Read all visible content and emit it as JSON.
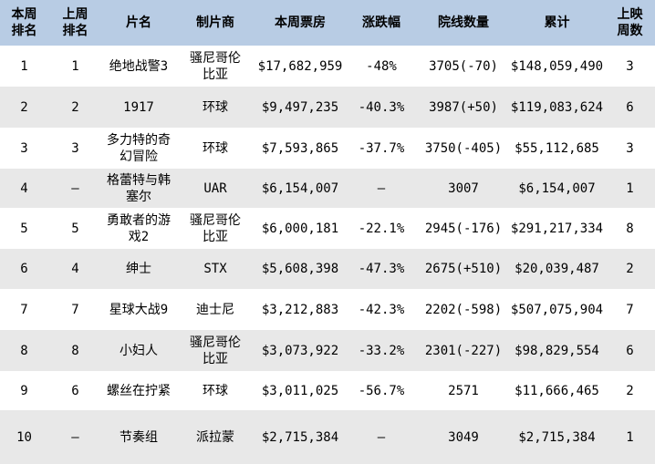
{
  "colors": {
    "header_bg": "#b8cce4",
    "row_bg": "#ffffff",
    "row_alt_bg": "#e8e8e8",
    "text": "#000000"
  },
  "chart_data": {
    "type": "table",
    "title": "",
    "columns": [
      {
        "key": "rank_this_week",
        "label": "本周\n排名"
      },
      {
        "key": "rank_last_week",
        "label": "上周\n排名"
      },
      {
        "key": "film_title",
        "label": "片名"
      },
      {
        "key": "studio",
        "label": "制片商"
      },
      {
        "key": "gross_this_week",
        "label": "本周票房"
      },
      {
        "key": "change_pct",
        "label": "涨跌幅"
      },
      {
        "key": "theater_count",
        "label": "院线数量"
      },
      {
        "key": "cumulative_gross",
        "label": "累计"
      },
      {
        "key": "weeks_released",
        "label": "上映\n周数"
      }
    ],
    "rows": [
      [
        "1",
        "1",
        "绝地战警3",
        "骚尼哥伦\n比亚",
        "$17,682,959",
        "-48%",
        "3705(-70)",
        "$148,059,490",
        "3"
      ],
      [
        "2",
        "2",
        "1917",
        "环球",
        "$9,497,235",
        "-40.3%",
        "3987(+50)",
        "$119,083,624",
        "6"
      ],
      [
        "3",
        "3",
        "多力特的奇\n幻冒险",
        "环球",
        "$7,593,865",
        "-37.7%",
        "3750(-405)",
        "$55,112,685",
        "3"
      ],
      [
        "4",
        "–",
        "格蕾特与韩\n塞尔",
        "UAR",
        "$6,154,007",
        "–",
        "3007",
        "$6,154,007",
        "1"
      ],
      [
        "5",
        "5",
        "勇敢者的游\n戏2",
        "骚尼哥伦\n比亚",
        "$6,000,181",
        "-22.1%",
        "2945(-176)",
        "$291,217,334",
        "8"
      ],
      [
        "6",
        "4",
        "绅士",
        "STX",
        "$5,608,398",
        "-47.3%",
        "2675(+510)",
        "$20,039,487",
        "2"
      ],
      [
        "7",
        "7",
        "星球大战9",
        "迪士尼",
        "$3,212,883",
        "-42.3%",
        "2202(-598)",
        "$507,075,904",
        "7"
      ],
      [
        "8",
        "8",
        "小妇人",
        "骚尼哥伦\n比亚",
        "$3,073,922",
        "-33.2%",
        "2301(-227)",
        "$98,829,554",
        "6"
      ],
      [
        "9",
        "6",
        "螺丝在拧紧",
        "环球",
        "$3,011,025",
        "-56.7%",
        "2571",
        "$11,666,465",
        "2"
      ],
      [
        "10",
        "–",
        "节奏组",
        "派拉蒙",
        "$2,715,384",
        "–",
        "3049",
        "$2,715,384",
        "1"
      ]
    ]
  }
}
